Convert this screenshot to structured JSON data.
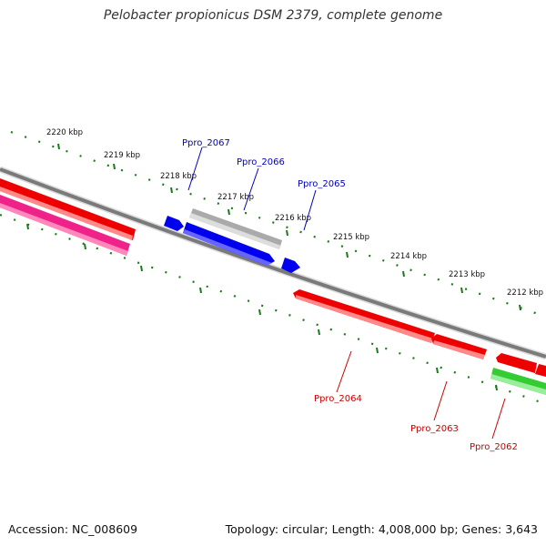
{
  "title": "Pelobacter propionicus DSM 2379, complete genome",
  "footer": {
    "accession": "Accession: NC_008609",
    "topology": "Topology: circular; Length: 4,008,000 bp; Genes: 3,643"
  },
  "ticks": [
    {
      "kbp": 2220,
      "label": "2220 kbp"
    },
    {
      "kbp": 2219,
      "label": "2219 kbp"
    },
    {
      "kbp": 2218,
      "label": "2218 kbp"
    },
    {
      "kbp": 2217,
      "label": "2217 kbp"
    },
    {
      "kbp": 2216,
      "label": "2216 kbp"
    },
    {
      "kbp": 2215,
      "label": "2215 kbp"
    },
    {
      "kbp": 2214,
      "label": "2214 kbp"
    },
    {
      "kbp": 2213,
      "label": "2213 kbp"
    },
    {
      "kbp": 2212,
      "label": "2212 kbp"
    }
  ],
  "gene_labels": {
    "forward": [
      "Ppro_2067",
      "Ppro_2066",
      "Ppro_2065"
    ],
    "reverse": [
      "Ppro_2064",
      "Ppro_2063",
      "Ppro_2062"
    ]
  },
  "colors": {
    "backbone": "#7a7a7a",
    "forward_gene": "#0000ee",
    "forward_label": "#0000bb",
    "reverse_gene": "#ee0000",
    "reverse_label": "#cc0000",
    "pseudo_gene": "#aaaaaa",
    "rna_gene": "#ee2288",
    "other_gene": "#33cc33",
    "tick": "#1a7a1a"
  }
}
